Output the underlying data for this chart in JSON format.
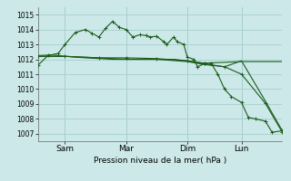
{
  "background_color": "#cce8e8",
  "grid_color": "#a8cece",
  "line_color": "#1a5c1a",
  "ylabel_text": "Pression niveau de la mer( hPa )",
  "ylim": [
    1006.5,
    1015.5
  ],
  "yticks": [
    1007,
    1008,
    1009,
    1010,
    1011,
    1012,
    1013,
    1014,
    1015
  ],
  "xtick_labels": [
    "Sam",
    "Mar",
    "Dim",
    "Lun"
  ],
  "xtick_positions": [
    8,
    26,
    44,
    60
  ],
  "xmin": 0,
  "xmax": 72,
  "series1_x": [
    0,
    3,
    6,
    8,
    11,
    14,
    16,
    18,
    20,
    22,
    24,
    26,
    28,
    30,
    32,
    33,
    35,
    37,
    38,
    40,
    41,
    43,
    44,
    46,
    47,
    49,
    51,
    53,
    55,
    57,
    60,
    62,
    64,
    67,
    69,
    72
  ],
  "series1_y": [
    1011.6,
    1012.25,
    1012.4,
    1013.0,
    1013.8,
    1014.0,
    1013.75,
    1013.5,
    1014.1,
    1014.55,
    1014.15,
    1014.0,
    1013.5,
    1013.65,
    1013.6,
    1013.5,
    1013.55,
    1013.2,
    1013.0,
    1013.5,
    1013.2,
    1013.0,
    1012.15,
    1012.0,
    1011.5,
    1011.7,
    1011.75,
    1011.0,
    1010.0,
    1009.5,
    1009.1,
    1008.1,
    1008.0,
    1007.85,
    1007.1,
    1007.2
  ],
  "series2_x": [
    0,
    4,
    8,
    14,
    18,
    22,
    26,
    30,
    35,
    40,
    44,
    49,
    55,
    60,
    67,
    72
  ],
  "series2_y": [
    1012.25,
    1012.3,
    1012.2,
    1012.1,
    1012.05,
    1012.0,
    1012.0,
    1012.0,
    1012.0,
    1012.0,
    1011.9,
    1011.75,
    1011.8,
    1011.85,
    1011.85,
    1011.85
  ],
  "series3_x": [
    0,
    8,
    18,
    26,
    35,
    44,
    49,
    55,
    60,
    67,
    72
  ],
  "series3_y": [
    1012.2,
    1012.2,
    1012.1,
    1012.1,
    1012.05,
    1011.9,
    1011.7,
    1011.5,
    1011.0,
    1009.05,
    1007.1
  ],
  "series4_x": [
    0,
    8,
    18,
    26,
    35,
    44,
    49,
    55,
    60,
    67,
    72
  ],
  "series4_y": [
    1012.2,
    1012.2,
    1012.1,
    1012.0,
    1012.0,
    1011.85,
    1011.65,
    1011.5,
    1011.9,
    1009.2,
    1007.2
  ]
}
